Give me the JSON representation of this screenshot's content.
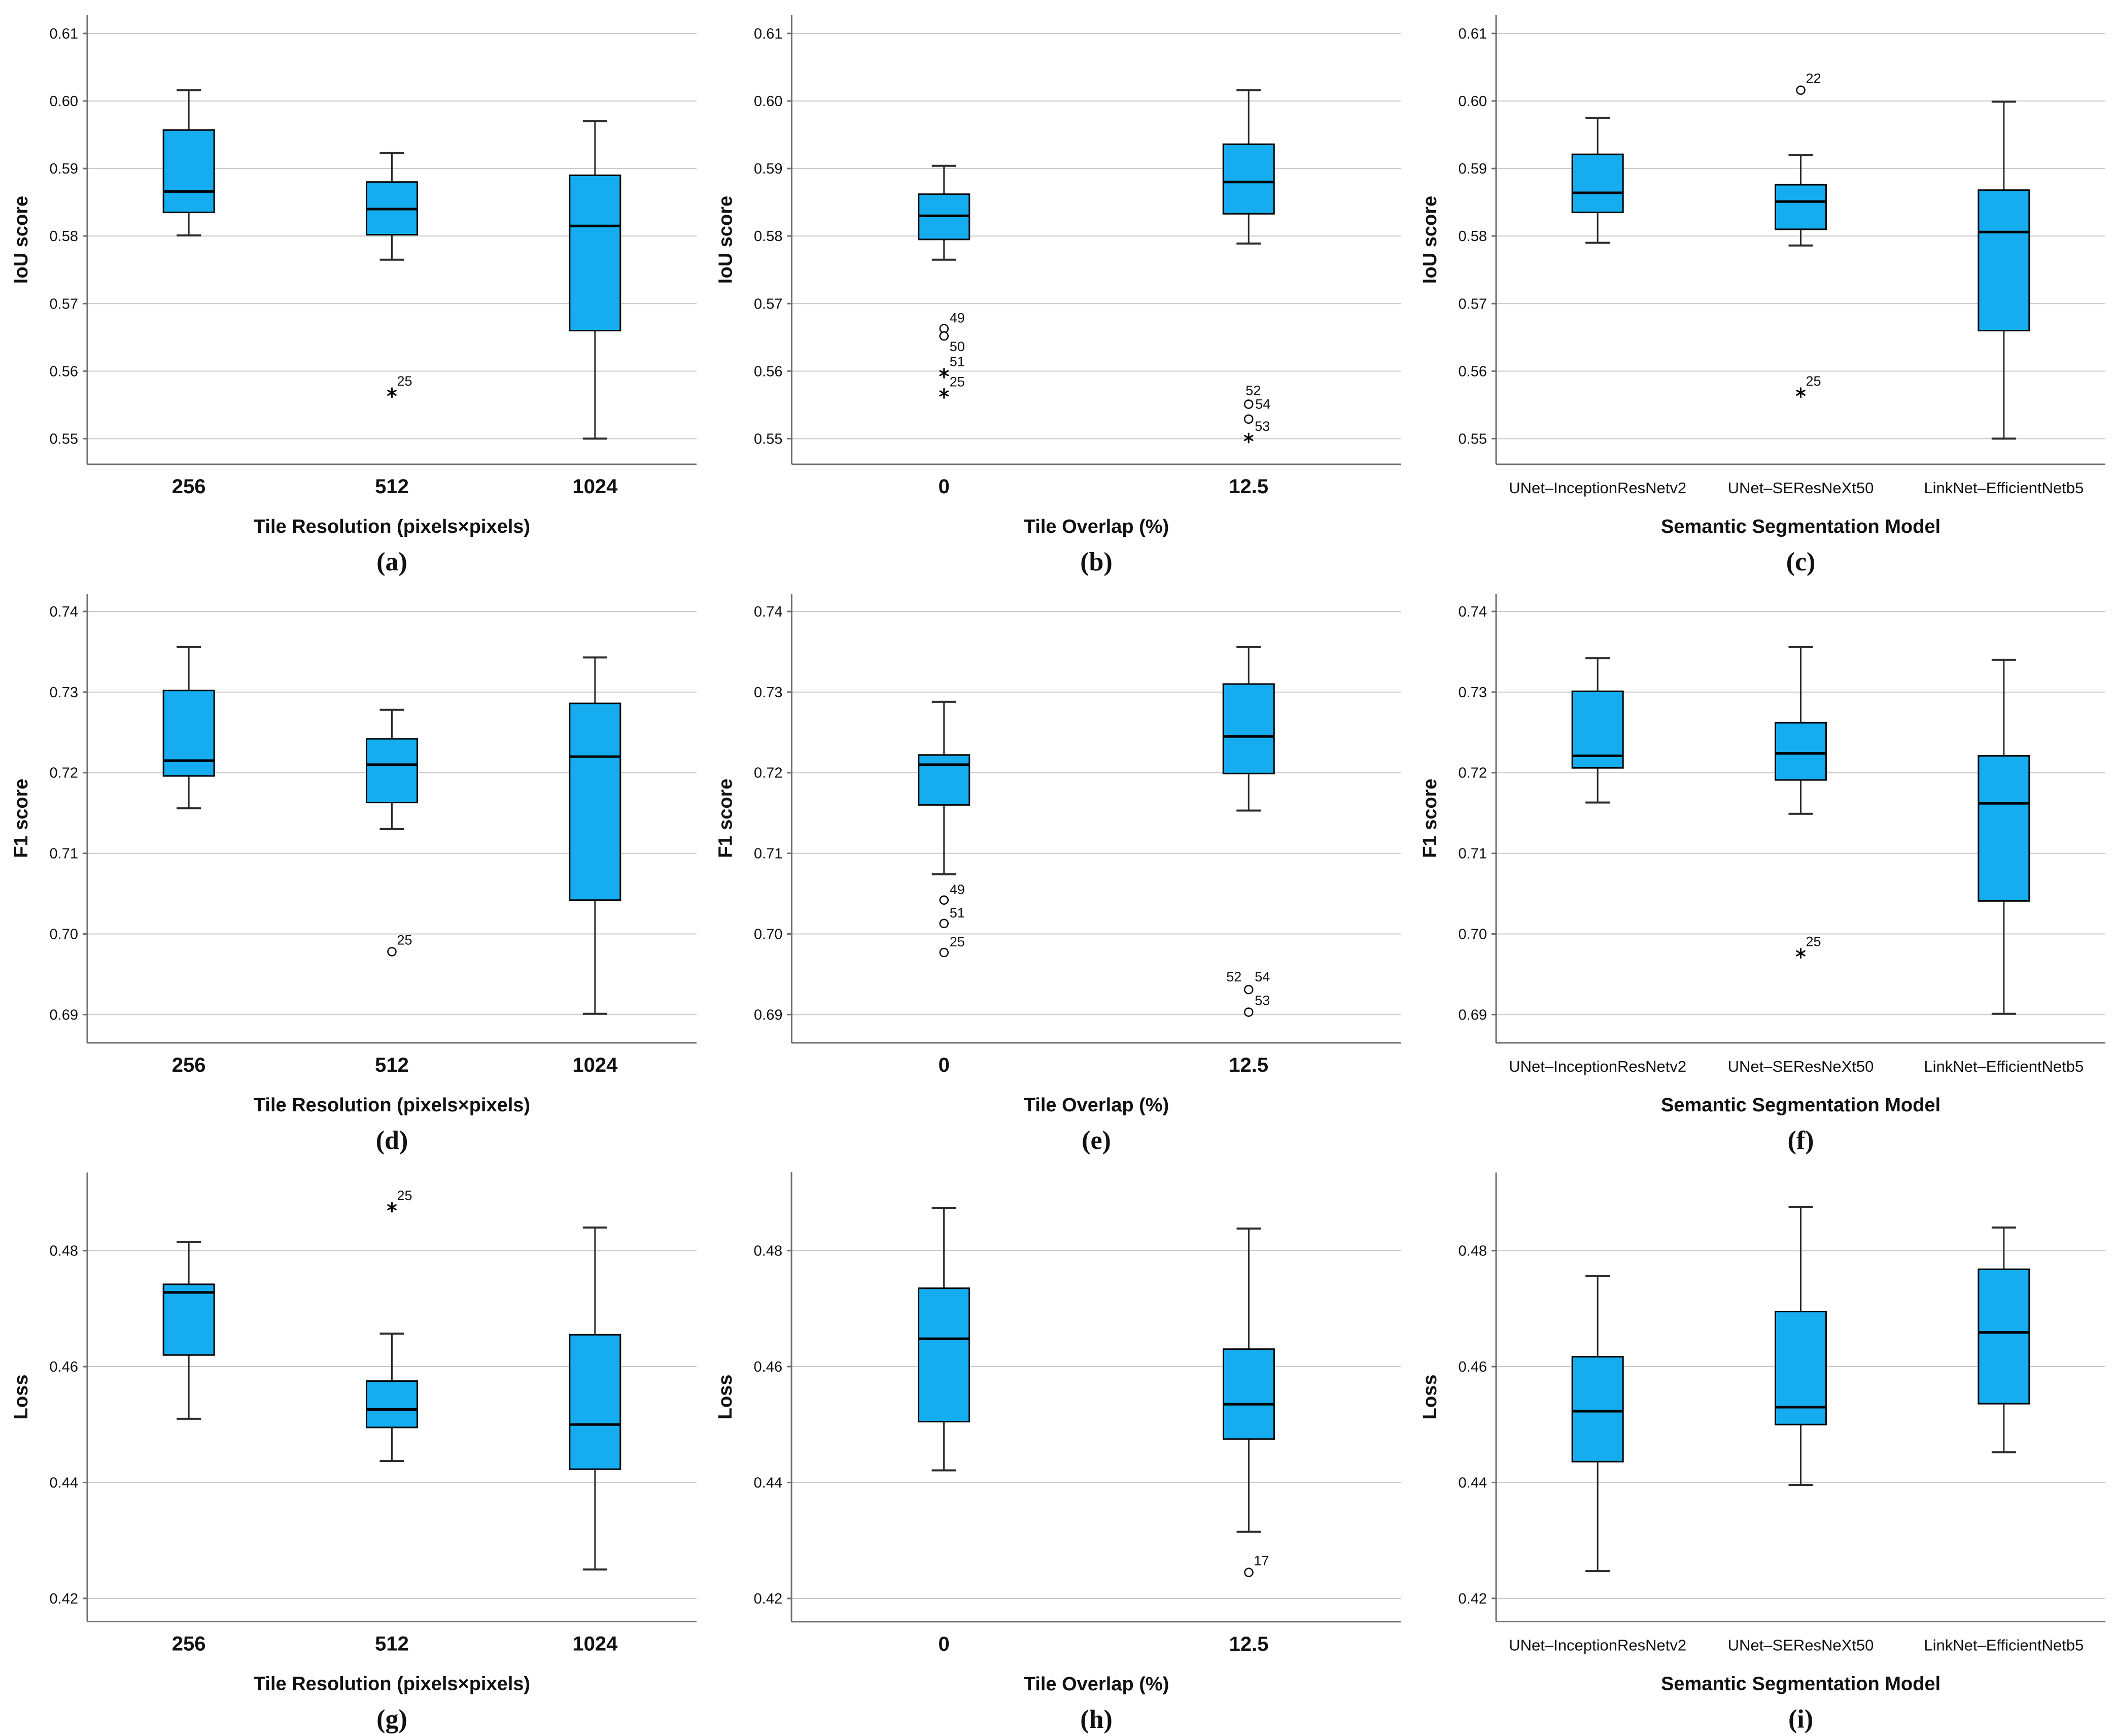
{
  "colors": {
    "background": "#ffffff",
    "box_fill": "#15ADEF",
    "box_stroke": "#000000",
    "median": "#000000",
    "whisker": "#2b2b2b",
    "gridline": "#c9c9c9",
    "axis": "#6e6e6e",
    "text": "#111111"
  },
  "chart_data": [
    {
      "id": "a",
      "type": "box",
      "caption": "(a)",
      "xlabel": "Tile Resolution (pixels×pixels)",
      "ylabel": "IoU score",
      "ylim": [
        0.5462,
        0.6127
      ],
      "yticks": [
        0.61,
        0.6,
        0.59,
        0.58,
        0.57,
        0.56,
        0.55
      ],
      "grid": true,
      "categories": [
        "256",
        "512",
        "1024"
      ],
      "cat_bold": true,
      "boxes": [
        {
          "low": 0.5801,
          "q1": 0.5835,
          "med": 0.5866,
          "q3": 0.5957,
          "high": 0.6016,
          "outliers": []
        },
        {
          "low": 0.5765,
          "q1": 0.5802,
          "med": 0.584,
          "q3": 0.588,
          "high": 0.5923,
          "outliers": [
            {
              "v": 0.5568,
              "m": "star",
              "labels": [
                {
                  "t": "25",
                  "dx": 10,
                  "dy": -14
                }
              ]
            }
          ]
        },
        {
          "low": 0.55,
          "q1": 0.566,
          "med": 0.5815,
          "q3": 0.589,
          "high": 0.597,
          "outliers": []
        }
      ]
    },
    {
      "id": "b",
      "type": "box",
      "caption": "(b)",
      "xlabel": "Tile Overlap (%)",
      "ylabel": "IoU score",
      "ylim": [
        0.5462,
        0.6127
      ],
      "yticks": [
        0.61,
        0.6,
        0.59,
        0.58,
        0.57,
        0.56,
        0.55
      ],
      "grid": true,
      "categories": [
        "0",
        "12.5"
      ],
      "cat_bold": true,
      "boxes": [
        {
          "low": 0.5765,
          "q1": 0.5795,
          "med": 0.583,
          "q3": 0.5862,
          "high": 0.5904,
          "outliers": [
            {
              "v": 0.5663,
              "m": "circle",
              "labels": [
                {
                  "t": "49",
                  "dx": 11,
                  "dy": -12
                }
              ]
            },
            {
              "v": 0.5652,
              "m": "circle",
              "labels": [
                {
                  "t": "50",
                  "dx": 11,
                  "dy": 30
                }
              ]
            },
            {
              "v": 0.5597,
              "m": "star",
              "labels": [
                {
                  "t": "51",
                  "dx": 11,
                  "dy": -14
                }
              ]
            },
            {
              "v": 0.5567,
              "m": "star",
              "labels": [
                {
                  "t": "25",
                  "dx": 11,
                  "dy": -14
                }
              ]
            }
          ]
        },
        {
          "low": 0.5789,
          "q1": 0.5833,
          "med": 0.588,
          "q3": 0.5936,
          "high": 0.6016,
          "outliers": [
            {
              "v": 0.5551,
              "m": "circle",
              "labels": [
                {
                  "t": "52",
                  "dx": -6,
                  "dy": -18
                },
                {
                  "t": "54",
                  "dx": 13,
                  "dy": 9
                }
              ]
            },
            {
              "v": 0.5529,
              "m": "circle",
              "labels": []
            },
            {
              "v": 0.5501,
              "m": "star",
              "labels": [
                {
                  "t": "53",
                  "dx": 12,
                  "dy": -14
                }
              ]
            }
          ]
        }
      ]
    },
    {
      "id": "c",
      "type": "box",
      "caption": "(c)",
      "xlabel": "Semantic Segmentation Model",
      "ylabel": "IoU score",
      "ylim": [
        0.5462,
        0.6127
      ],
      "yticks": [
        0.61,
        0.6,
        0.59,
        0.58,
        0.57,
        0.56,
        0.55
      ],
      "grid": true,
      "categories": [
        "UNet–InceptionResNetv2",
        "UNet–SEResNeXt50",
        "LinkNet–EfficientNetb5"
      ],
      "cat_bold": false,
      "boxes": [
        {
          "low": 0.579,
          "q1": 0.5835,
          "med": 0.5864,
          "q3": 0.5921,
          "high": 0.5975,
          "outliers": []
        },
        {
          "low": 0.5786,
          "q1": 0.581,
          "med": 0.5851,
          "q3": 0.5876,
          "high": 0.592,
          "outliers": [
            {
              "v": 0.6016,
              "m": "circle",
              "labels": [
                {
                  "t": "22",
                  "dx": 10,
                  "dy": -14
                }
              ]
            },
            {
              "v": 0.5568,
              "m": "star",
              "labels": [
                {
                  "t": "25",
                  "dx": 10,
                  "dy": -14
                }
              ]
            }
          ]
        },
        {
          "low": 0.55,
          "q1": 0.566,
          "med": 0.5806,
          "q3": 0.5868,
          "high": 0.5999,
          "outliers": []
        }
      ]
    },
    {
      "id": "d",
      "type": "box",
      "caption": "(d)",
      "xlabel": "Tile Resolution (pixels×pixels)",
      "ylabel": "F1 score",
      "ylim": [
        0.6865,
        0.7422
      ],
      "yticks": [
        0.74,
        0.73,
        0.72,
        0.71,
        0.7,
        0.69
      ],
      "grid": true,
      "categories": [
        "256",
        "512",
        "1024"
      ],
      "cat_bold": true,
      "boxes": [
        {
          "low": 0.7156,
          "q1": 0.7196,
          "med": 0.7215,
          "q3": 0.7302,
          "high": 0.7356,
          "outliers": []
        },
        {
          "low": 0.713,
          "q1": 0.7163,
          "med": 0.721,
          "q3": 0.7242,
          "high": 0.7278,
          "outliers": [
            {
              "v": 0.6978,
              "m": "circle",
              "labels": [
                {
                  "t": "25",
                  "dx": 10,
                  "dy": -14
                }
              ]
            }
          ]
        },
        {
          "low": 0.6901,
          "q1": 0.7042,
          "med": 0.722,
          "q3": 0.7286,
          "high": 0.7343,
          "outliers": []
        }
      ]
    },
    {
      "id": "e",
      "type": "box",
      "caption": "(e)",
      "xlabel": "Tile Overlap (%)",
      "ylabel": "F1 score",
      "ylim": [
        0.6865,
        0.7422
      ],
      "yticks": [
        0.74,
        0.73,
        0.72,
        0.71,
        0.7,
        0.69
      ],
      "grid": true,
      "categories": [
        "0",
        "12.5"
      ],
      "cat_bold": true,
      "boxes": [
        {
          "low": 0.7074,
          "q1": 0.716,
          "med": 0.721,
          "q3": 0.7222,
          "high": 0.7288,
          "outliers": [
            {
              "v": 0.7042,
              "m": "circle",
              "labels": [
                {
                  "t": "49",
                  "dx": 11,
                  "dy": -12
                }
              ]
            },
            {
              "v": 0.7013,
              "m": "circle",
              "labels": [
                {
                  "t": "51",
                  "dx": 11,
                  "dy": -12
                }
              ]
            },
            {
              "v": 0.6977,
              "m": "circle",
              "labels": [
                {
                  "t": "25",
                  "dx": 11,
                  "dy": -12
                }
              ]
            }
          ]
        },
        {
          "low": 0.7153,
          "q1": 0.7199,
          "med": 0.7245,
          "q3": 0.731,
          "high": 0.7356,
          "outliers": [
            {
              "v": 0.6931,
              "m": "circle",
              "labels": [
                {
                  "t": "52",
                  "dx": -44,
                  "dy": -16
                },
                {
                  "t": "54",
                  "dx": 12,
                  "dy": -16
                }
              ]
            },
            {
              "v": 0.6903,
              "m": "circle",
              "labels": [
                {
                  "t": "53",
                  "dx": 12,
                  "dy": -14
                }
              ]
            }
          ]
        }
      ]
    },
    {
      "id": "f",
      "type": "box",
      "caption": "(f)",
      "xlabel": "Semantic Segmentation Model",
      "ylabel": "F1 score",
      "ylim": [
        0.6865,
        0.7422
      ],
      "yticks": [
        0.74,
        0.73,
        0.72,
        0.71,
        0.7,
        0.69
      ],
      "grid": true,
      "categories": [
        "UNet–InceptionResNetv2",
        "UNet–SEResNeXt50",
        "LinkNet–EfficientNetb5"
      ],
      "cat_bold": false,
      "boxes": [
        {
          "low": 0.7163,
          "q1": 0.7206,
          "med": 0.7221,
          "q3": 0.7301,
          "high": 0.7342,
          "outliers": []
        },
        {
          "low": 0.7149,
          "q1": 0.7191,
          "med": 0.7224,
          "q3": 0.7262,
          "high": 0.7356,
          "outliers": [
            {
              "v": 0.6976,
              "m": "star",
              "labels": [
                {
                  "t": "25",
                  "dx": 10,
                  "dy": -14
                }
              ]
            }
          ]
        },
        {
          "low": 0.6901,
          "q1": 0.7041,
          "med": 0.7162,
          "q3": 0.7221,
          "high": 0.734,
          "outliers": []
        }
      ]
    },
    {
      "id": "g",
      "type": "box",
      "caption": "(g)",
      "xlabel": "Tile Resolution (pixels×pixels)",
      "ylabel": "Loss",
      "ylim": [
        0.416,
        0.4935
      ],
      "yticks": [
        0.48,
        0.46,
        0.44,
        0.42
      ],
      "grid": true,
      "categories": [
        "256",
        "512",
        "1024"
      ],
      "cat_bold": true,
      "boxes": [
        {
          "low": 0.451,
          "q1": 0.462,
          "med": 0.4728,
          "q3": 0.4742,
          "high": 0.4815,
          "outliers": []
        },
        {
          "low": 0.4437,
          "q1": 0.4495,
          "med": 0.4526,
          "q3": 0.4575,
          "high": 0.4657,
          "outliers": [
            {
              "v": 0.4875,
              "m": "star",
              "labels": [
                {
                  "t": "25",
                  "dx": 10,
                  "dy": -14
                }
              ]
            }
          ]
        },
        {
          "low": 0.425,
          "q1": 0.4423,
          "med": 0.45,
          "q3": 0.4655,
          "high": 0.484,
          "outliers": []
        }
      ]
    },
    {
      "id": "h",
      "type": "box",
      "caption": "(h)",
      "xlabel": "Tile Overlap (%)",
      "ylabel": "Loss",
      "ylim": [
        0.416,
        0.4935
      ],
      "yticks": [
        0.48,
        0.46,
        0.44,
        0.42
      ],
      "grid": true,
      "categories": [
        "0",
        "12.5"
      ],
      "cat_bold": true,
      "boxes": [
        {
          "low": 0.4421,
          "q1": 0.4505,
          "med": 0.4648,
          "q3": 0.4735,
          "high": 0.4873,
          "outliers": []
        },
        {
          "low": 0.4315,
          "q1": 0.4475,
          "med": 0.4535,
          "q3": 0.463,
          "high": 0.4838,
          "outliers": [
            {
              "v": 0.4245,
              "m": "circle",
              "labels": [
                {
                  "t": "17",
                  "dx": 10,
                  "dy": -14
                }
              ]
            }
          ]
        }
      ]
    },
    {
      "id": "i",
      "type": "box",
      "caption": "(i)",
      "xlabel": "Semantic Segmentation Model",
      "ylabel": "Loss",
      "ylim": [
        0.416,
        0.4935
      ],
      "yticks": [
        0.48,
        0.46,
        0.44,
        0.42
      ],
      "grid": true,
      "categories": [
        "UNet–InceptionResNetv2",
        "UNet–SEResNeXt50",
        "LinkNet–EfficientNetb5"
      ],
      "cat_bold": false,
      "boxes": [
        {
          "low": 0.4247,
          "q1": 0.4436,
          "med": 0.4523,
          "q3": 0.4617,
          "high": 0.4756,
          "outliers": []
        },
        {
          "low": 0.4396,
          "q1": 0.45,
          "med": 0.453,
          "q3": 0.4695,
          "high": 0.4875,
          "outliers": []
        },
        {
          "low": 0.4452,
          "q1": 0.4536,
          "med": 0.4659,
          "q3": 0.4768,
          "high": 0.484,
          "outliers": []
        }
      ]
    }
  ]
}
